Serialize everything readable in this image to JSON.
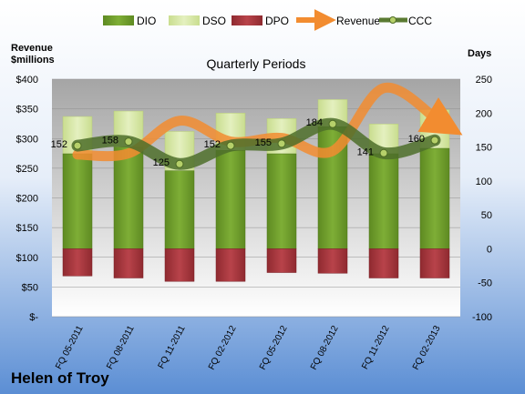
{
  "chart_data": {
    "type": "bar",
    "title": "Quarterly Periods",
    "company": "Helen of Troy",
    "y_left_label": "Revenue\n$millions",
    "y_right_label": "Days",
    "y_left_ticks": [
      "$-",
      "$50",
      "$100",
      "$150",
      "$200",
      "$250",
      "$300",
      "$350",
      "$400"
    ],
    "y_right_ticks": [
      "-100",
      "-50",
      "0",
      "50",
      "100",
      "150",
      "200",
      "250"
    ],
    "ylim_right": [
      -100,
      250
    ],
    "ylim_left": [
      0,
      400
    ],
    "categories": [
      "FQ 05-2011",
      "FQ 08-2011",
      "FQ 11-2011",
      "FQ 02-2012",
      "FQ 05-2012",
      "FQ 08-2012",
      "FQ 11-2012",
      "FQ 02-2013"
    ],
    "legend": [
      "DIO",
      "DSO",
      "DPO",
      "Revenue",
      "CCC"
    ],
    "legend_position": "top",
    "series": [
      {
        "name": "DIO",
        "axis": "days",
        "color": "#6e9a2c",
        "values": [
          140,
          150,
          115,
          145,
          140,
          180,
          140,
          148
        ]
      },
      {
        "name": "DSO",
        "axis": "days",
        "color": "#d6e7a6",
        "values": [
          55,
          53,
          58,
          55,
          52,
          40,
          44,
          57
        ]
      },
      {
        "name": "DPO",
        "axis": "days",
        "color": "#a8323a",
        "values": [
          -40,
          -43,
          -48,
          -48,
          -35,
          -36,
          -43,
          -43
        ]
      },
      {
        "name": "Revenue",
        "axis": "revenue",
        "color": "#f28c30",
        "values": [
          273,
          275,
          330,
          295,
          301,
          279,
          385,
          330
        ]
      },
      {
        "name": "CCC",
        "axis": "days",
        "color": "#5a7a32",
        "values": [
          152,
          158,
          125,
          152,
          155,
          184,
          141,
          160
        ]
      }
    ],
    "ccc_labels": [
      "152",
      "158",
      "125",
      "152",
      "155",
      "184",
      "141",
      "160"
    ],
    "grid": true,
    "colors": {
      "plot_top": "#a3a3a3",
      "plot_bottom": "#ffffff",
      "bg_top": "#ffffff",
      "bg_bottom": "#5b8ed4"
    }
  }
}
